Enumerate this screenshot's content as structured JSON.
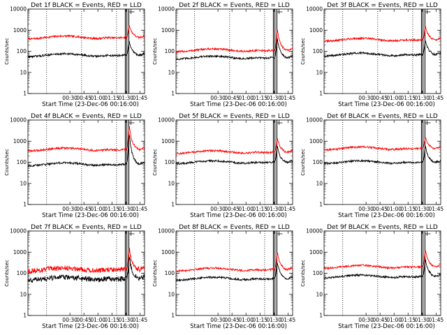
{
  "chart_data": [
    {
      "type": "line",
      "title": "Det 1f BLACK = Events, RED = LLD",
      "xlabel": "Start Time (23-Dec-06 00:16:00)",
      "ylabel": "Counts/sec",
      "xticks": [
        "00:30",
        "00:45",
        "01:00",
        "01:15",
        "01:30",
        "01:45"
      ],
      "yticks": [
        "1",
        "10",
        "100",
        "1000",
        "10000"
      ],
      "ylim": [
        1,
        10000
      ],
      "yscale": "log",
      "series": [
        {
          "name": "LLD",
          "color": "#ff0000",
          "base": 450,
          "peak": 1600
        },
        {
          "name": "Events",
          "color": "#000000",
          "base": 65,
          "peak": 250
        }
      ]
    },
    {
      "type": "line",
      "title": "Det 2f BLACK = Events, RED = LLD",
      "xlabel": "Start Time (23-Dec-06 00:16:00)",
      "ylabel": "Counts/sec",
      "xticks": [
        "00:30",
        "00:45",
        "01:00",
        "01:15",
        "01:30",
        "01:45"
      ],
      "yticks": [
        "1",
        "10",
        "100",
        "1000",
        "10000"
      ],
      "ylim": [
        1,
        10000
      ],
      "yscale": "log",
      "series": [
        {
          "name": "LLD",
          "color": "#ff0000",
          "base": 110,
          "peak": 1000
        },
        {
          "name": "Events",
          "color": "#000000",
          "base": 50,
          "peak": 350
        }
      ]
    },
    {
      "type": "line",
      "title": "Det 3f BLACK = Events, RED = LLD",
      "xlabel": "Start Time (23-Dec-06 00:16:00)",
      "ylabel": "Counts/sec",
      "xticks": [
        "00:30",
        "00:45",
        "01:00",
        "01:15",
        "01:30",
        "01:45"
      ],
      "yticks": [
        "1",
        "10",
        "100",
        "1000",
        "10000"
      ],
      "ylim": [
        1,
        10000
      ],
      "yscale": "log",
      "series": [
        {
          "name": "LLD",
          "color": "#ff0000",
          "base": 350,
          "peak": 1300
        },
        {
          "name": "Events",
          "color": "#000000",
          "base": 70,
          "peak": 300
        }
      ]
    },
    {
      "type": "line",
      "title": "Det 4f BLACK = Events, RED = LLD",
      "xlabel": "Start Time (23-Dec-06 00:16:00)",
      "ylabel": "Counts/sec",
      "xticks": [
        "00:30",
        "00:45",
        "01:00",
        "01:15",
        "01:30",
        "01:45"
      ],
      "yticks": [
        "1",
        "10",
        "100",
        "1000",
        "10000"
      ],
      "ylim": [
        1,
        10000
      ],
      "yscale": "log",
      "series": [
        {
          "name": "LLD",
          "color": "#ff0000",
          "base": 400,
          "peak": 4500
        },
        {
          "name": "Events",
          "color": "#000000",
          "base": 80,
          "peak": 2000
        }
      ]
    },
    {
      "type": "line",
      "title": "Det 5f BLACK = Events, RED = LLD",
      "xlabel": "Start Time (23-Dec-06 00:16:00)",
      "ylabel": "Counts/sec",
      "xticks": [
        "00:30",
        "00:45",
        "01:00",
        "01:15",
        "01:30",
        "01:45"
      ],
      "yticks": [
        "1",
        "10",
        "100",
        "1000",
        "10000"
      ],
      "ylim": [
        1,
        10000
      ],
      "yscale": "log",
      "series": [
        {
          "name": "LLD",
          "color": "#ff0000",
          "base": 300,
          "peak": 1200
        },
        {
          "name": "Events",
          "color": "#000000",
          "base": 100,
          "peak": 500
        }
      ]
    },
    {
      "type": "line",
      "title": "Det 6f BLACK = Events, RED = LLD",
      "xlabel": "Start Time (23-Dec-06 00:16:00)",
      "ylabel": "Counts/sec",
      "xticks": [
        "00:30",
        "00:45",
        "01:00",
        "01:15",
        "01:30",
        "01:45"
      ],
      "yticks": [
        "1",
        "10",
        "100",
        "1000",
        "10000"
      ],
      "ylim": [
        1,
        10000
      ],
      "yscale": "log",
      "series": [
        {
          "name": "LLD",
          "color": "#ff0000",
          "base": 450,
          "peak": 1400
        },
        {
          "name": "Events",
          "color": "#000000",
          "base": 100,
          "peak": 500
        }
      ]
    },
    {
      "type": "line",
      "title": "Det 7f BLACK = Events, RED = LLD",
      "xlabel": "Start Time (23-Dec-06 00:16:00)",
      "ylabel": "Counts/sec",
      "xticks": [
        "00:30",
        "00:45",
        "01:00",
        "01:15",
        "01:30",
        "01:45"
      ],
      "yticks": [
        "1",
        "10",
        "100",
        "1000",
        "10000"
      ],
      "ylim": [
        1,
        10000
      ],
      "yscale": "log",
      "series": [
        {
          "name": "LLD",
          "color": "#ff0000",
          "base": 150,
          "peak": 1200
        },
        {
          "name": "Events",
          "color": "#000000",
          "base": 55,
          "peak": 500
        }
      ]
    },
    {
      "type": "line",
      "title": "Det 8f BLACK = Events, RED = LLD",
      "xlabel": "Start Time (23-Dec-06 00:16:00)",
      "ylabel": "Counts/sec",
      "xticks": [
        "00:30",
        "00:45",
        "01:00",
        "01:15",
        "01:30",
        "01:45"
      ],
      "yticks": [
        "1",
        "10",
        "100",
        "1000",
        "10000"
      ],
      "ylim": [
        1,
        10000
      ],
      "yscale": "log",
      "series": [
        {
          "name": "LLD",
          "color": "#ff0000",
          "base": 150,
          "peak": 800
        },
        {
          "name": "Events",
          "color": "#000000",
          "base": 55,
          "peak": 300
        }
      ]
    },
    {
      "type": "line",
      "title": "Det 9f BLACK = Events, RED = LLD",
      "xlabel": "Start Time (23-Dec-06 00:16:00)",
      "ylabel": "Counts/sec",
      "xticks": [
        "00:30",
        "00:45",
        "01:00",
        "01:15",
        "01:30",
        "01:45"
      ],
      "yticks": [
        "1",
        "10",
        "100",
        "1000",
        "10000"
      ],
      "ylim": [
        1,
        10000
      ],
      "yscale": "log",
      "series": [
        {
          "name": "LLD",
          "color": "#ff0000",
          "base": 200,
          "peak": 1100
        },
        {
          "name": "Events",
          "color": "#000000",
          "base": 70,
          "peak": 400
        }
      ]
    }
  ]
}
